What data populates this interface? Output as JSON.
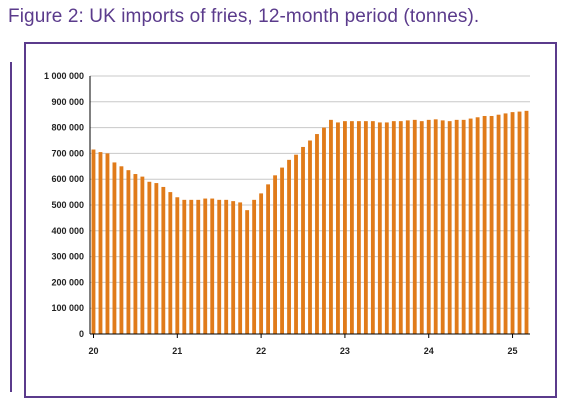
{
  "figure": {
    "title": "Figure 2: UK imports of fries, 12-month period (tonnes).",
    "accent_color": "#5b3b8c"
  },
  "chart_data": {
    "type": "bar",
    "title": "",
    "xlabel": "",
    "ylabel": "",
    "bar_color": "#e07b1a",
    "grid": true,
    "legend": "none",
    "ylim": [
      0,
      1000000
    ],
    "y_ticks": [
      {
        "value": 0,
        "label": "0"
      },
      {
        "value": 100000,
        "label": "100 000"
      },
      {
        "value": 200000,
        "label": "200 000"
      },
      {
        "value": 300000,
        "label": "300 000"
      },
      {
        "value": 400000,
        "label": "400 000"
      },
      {
        "value": 500000,
        "label": "500 000"
      },
      {
        "value": 600000,
        "label": "600 000"
      },
      {
        "value": 700000,
        "label": "700 000"
      },
      {
        "value": 800000,
        "label": "800 000"
      },
      {
        "value": 900000,
        "label": "900 000"
      },
      {
        "value": 1000000,
        "label": "1 000 000"
      }
    ],
    "x_ticks": [
      {
        "index": 0,
        "label": "20"
      },
      {
        "index": 12,
        "label": "21"
      },
      {
        "index": 24,
        "label": "22"
      },
      {
        "index": 36,
        "label": "23"
      },
      {
        "index": 48,
        "label": "24"
      },
      {
        "index": 60,
        "label": "25"
      }
    ],
    "values": [
      715000,
      705000,
      700000,
      665000,
      650000,
      635000,
      620000,
      610000,
      590000,
      585000,
      570000,
      550000,
      530000,
      520000,
      520000,
      520000,
      525000,
      525000,
      520000,
      520000,
      515000,
      510000,
      480000,
      520000,
      545000,
      580000,
      615000,
      645000,
      675000,
      695000,
      725000,
      750000,
      775000,
      800000,
      830000,
      820000,
      825000,
      825000,
      825000,
      825000,
      825000,
      820000,
      820000,
      825000,
      825000,
      828000,
      830000,
      825000,
      830000,
      832000,
      828000,
      825000,
      830000,
      830000,
      835000,
      840000,
      845000,
      845000,
      850000,
      855000,
      860000,
      862000,
      865000
    ]
  }
}
